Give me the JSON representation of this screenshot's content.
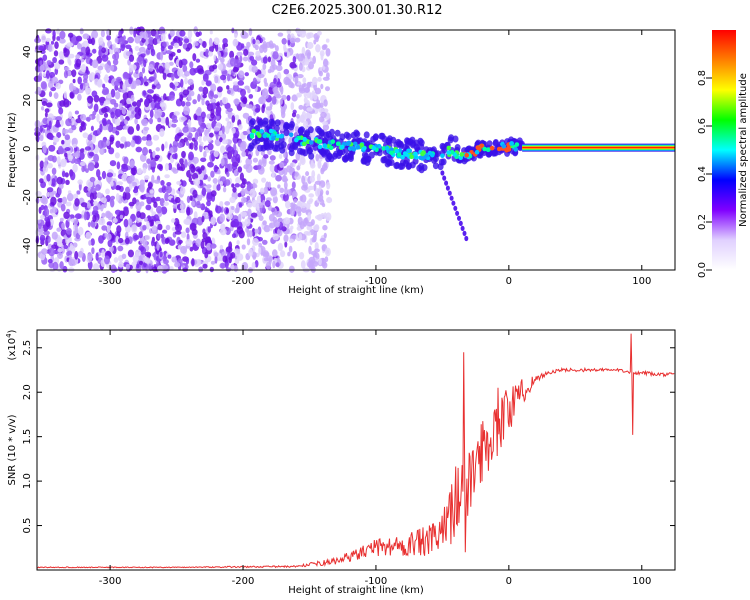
{
  "page": {
    "title": "C2E6.2025.300.01.30.R12"
  },
  "chart_data": [
    {
      "type": "heatmap",
      "id": "spectrogram",
      "xlabel": "Height of straight line (km)",
      "ylabel": "Frequency (Hz)",
      "xlim": [
        -355,
        125
      ],
      "ylim": [
        -50,
        49
      ],
      "xticks": [
        -300,
        -200,
        -100,
        0,
        100
      ],
      "xtick_labels": [
        "-300",
        "-200",
        "-100",
        "0",
        "100"
      ],
      "yticks": [
        -40,
        -20,
        0,
        20,
        40
      ],
      "ytick_labels": [
        "-40",
        "-20",
        "0",
        "20",
        "40"
      ],
      "noise_region_x": [
        -355,
        -160
      ],
      "signal_trace": {
        "x": [
          -195,
          -180,
          -160,
          -140,
          -120,
          -100,
          -80,
          -60,
          -45,
          -35,
          -20,
          -10,
          0,
          5,
          10,
          120
        ],
        "y": [
          6,
          6,
          4,
          2,
          1,
          0,
          -2,
          -3,
          -1,
          -3,
          0,
          0,
          1,
          1,
          0.5,
          0.5
        ]
      },
      "steady_line": {
        "x": [
          10,
          125
        ],
        "y": 0.5
      },
      "descending_streak": {
        "x": [
          -50,
          -32
        ],
        "y": [
          -10,
          -37
        ]
      },
      "colorbar": {
        "label": "Normalized spectral amplitude",
        "range": [
          0.0,
          1.0
        ],
        "ticks": [
          0.0,
          0.2,
          0.4,
          0.6,
          0.8
        ],
        "tick_labels": [
          "0.0",
          "0.2",
          "0.4",
          "0.6",
          "0.8"
        ],
        "colors": [
          "#ff0000",
          "#ff7f00",
          "#ffff00",
          "#00ff00",
          "#00ffff",
          "#0000ff",
          "#8000ff",
          "#e0d0ff",
          "#ffffff"
        ]
      }
    },
    {
      "type": "line",
      "id": "snr",
      "xlabel": "Height of straight line (km)",
      "ylabel": "SNR (10 * v/v)",
      "multiplier_label": "(x10",
      "multiplier_exp": "4",
      "multiplier_close": ")",
      "xlim": [
        -355,
        125
      ],
      "ylim": [
        0,
        2.7
      ],
      "xticks": [
        -300,
        -200,
        -100,
        0,
        100
      ],
      "xtick_labels": [
        "-300",
        "-200",
        "-100",
        "0",
        "100"
      ],
      "yticks": [
        0.5,
        1.0,
        1.5,
        2.0,
        2.5
      ],
      "ytick_labels": [
        "0.5",
        "1.0",
        "1.5",
        "2.0",
        "2.5"
      ],
      "series": [
        {
          "name": "SNR",
          "color": "#e83030",
          "x": [
            -355,
            -250,
            -160,
            -130,
            -110,
            -100,
            -80,
            -60,
            -50,
            -45,
            -38,
            -30,
            -20,
            -10,
            0,
            10,
            20,
            30,
            40,
            60,
            80,
            90,
            94,
            100,
            110,
            125
          ],
          "y": [
            0.03,
            0.03,
            0.04,
            0.1,
            0.2,
            0.25,
            0.28,
            0.32,
            0.4,
            0.6,
            0.9,
            1.0,
            1.35,
            1.6,
            1.8,
            2.0,
            2.15,
            2.22,
            2.25,
            2.25,
            2.25,
            2.24,
            2.2,
            2.22,
            2.2,
            2.2
          ],
          "noise": [
            0.005,
            0.005,
            0.01,
            0.04,
            0.07,
            0.1,
            0.13,
            0.18,
            0.24,
            0.35,
            0.45,
            0.45,
            0.35,
            0.35,
            0.3,
            0.15,
            0.05,
            0.02,
            0.02,
            0.02,
            0.02,
            0.02,
            0.02,
            0.02,
            0.02,
            0.02
          ],
          "spikes": [
            {
              "x": -34,
              "y": 2.45
            },
            {
              "x": -33,
              "y": 0.2
            },
            {
              "x": -8,
              "y": 2.05
            },
            {
              "x": 92,
              "y": 2.66
            },
            {
              "x": 93,
              "y": 1.52
            }
          ]
        }
      ]
    }
  ]
}
